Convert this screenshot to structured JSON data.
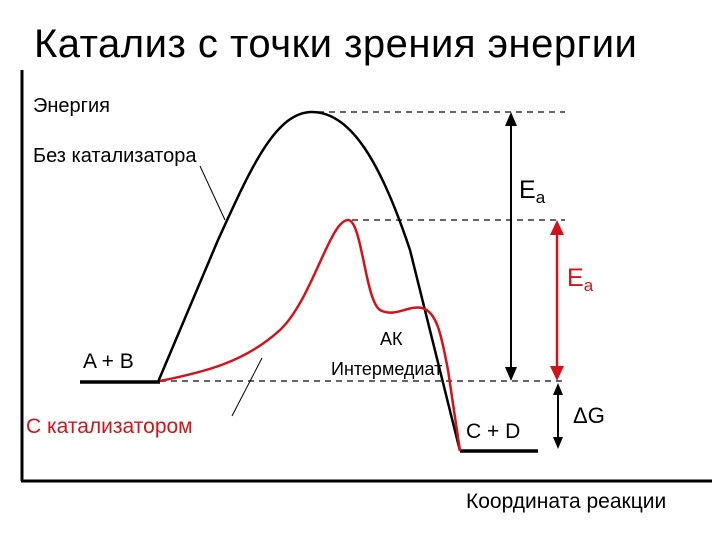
{
  "title": "Катализ с точки зрения энергии",
  "diagram": {
    "y_axis_label": "Энергия",
    "x_axis_label": "Координата реакции",
    "uncatalyzed_label": "Без катализатора",
    "catalyzed_label": "С катализатором",
    "reactants_label": "A + B",
    "products_label": "C + D",
    "intermediate_label_line1": "АК",
    "intermediate_label_line2": "Интермедиат",
    "ea_uncatalyzed": {
      "main": "E",
      "sub": "a"
    },
    "ea_catalyzed": {
      "main": "E",
      "sub": "a"
    },
    "delta_g_label": "ΔG",
    "colors": {
      "uncatalyzed": "#000000",
      "catalyzed": "#d4121a",
      "guide": "#333333"
    }
  }
}
